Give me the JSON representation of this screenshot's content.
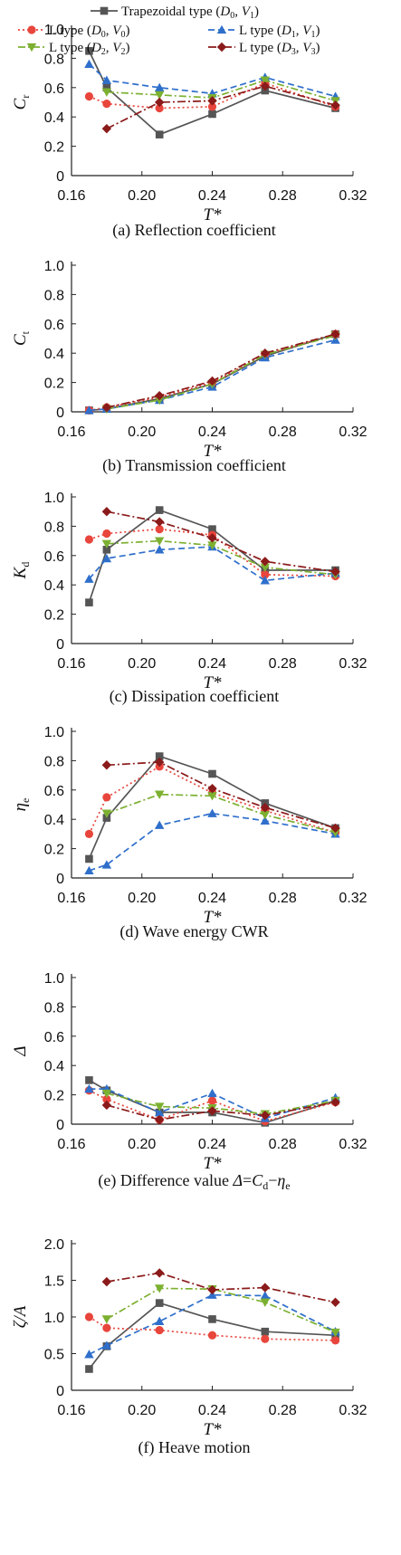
{
  "legend": [
    {
      "key": "trap",
      "name": "Trapezoidal type",
      "params": [
        [
          "D",
          "0"
        ],
        [
          "V",
          "1"
        ]
      ]
    },
    {
      "key": "l00",
      "name": "L type",
      "params": [
        [
          "D",
          "0"
        ],
        [
          "V",
          "0"
        ]
      ]
    },
    {
      "key": "l11",
      "name": "L type",
      "params": [
        [
          "D",
          "1"
        ],
        [
          "V",
          "1"
        ]
      ]
    },
    {
      "key": "l22",
      "name": "L type",
      "params": [
        [
          "D",
          "2"
        ],
        [
          "V",
          "2"
        ]
      ]
    },
    {
      "key": "l33",
      "name": "L type",
      "params": [
        [
          "D",
          "3"
        ],
        [
          "V",
          "3"
        ]
      ]
    }
  ],
  "styles": {
    "trap": {
      "color": "#555555",
      "dash": "",
      "marker": "square"
    },
    "l00": {
      "color": "#e8453c",
      "dash": "2,3",
      "marker": "circle"
    },
    "l11": {
      "color": "#2f6fcb",
      "dash": "7,4",
      "marker": "triangle-up"
    },
    "l22": {
      "color": "#7cb030",
      "dash": "8,3,2,3",
      "marker": "triangle-down"
    },
    "l33": {
      "color": "#8b1a1a",
      "dash": "9,3,2,3",
      "marker": "diamond"
    }
  },
  "chart_data": [
    {
      "type": "line",
      "caption": "(a) Reflection coefficient",
      "ylabel": {
        "main": "C",
        "sub": "r"
      },
      "xlabel": "T*",
      "xlim": [
        0.16,
        0.32
      ],
      "ylim": [
        0,
        1.0
      ],
      "xticks": [
        "0.16",
        "0.20",
        "0.24",
        "0.28",
        "0.32"
      ],
      "yticks": [
        "0",
        "0.2",
        "0.4",
        "0.6",
        "0.8",
        "1.0"
      ],
      "series": [
        {
          "key": "trap",
          "x": [
            0.17,
            0.18,
            0.21,
            0.24,
            0.27,
            0.31
          ],
          "y": [
            0.85,
            0.6,
            0.28,
            0.42,
            0.58,
            0.46
          ]
        },
        {
          "key": "l00",
          "x": [
            0.17,
            0.18,
            0.21,
            0.24,
            0.27,
            0.31
          ],
          "y": [
            0.54,
            0.49,
            0.46,
            0.47,
            0.63,
            0.47
          ]
        },
        {
          "key": "l11",
          "x": [
            0.17,
            0.18,
            0.21,
            0.24,
            0.27,
            0.31
          ],
          "y": [
            0.76,
            0.65,
            0.6,
            0.56,
            0.67,
            0.54
          ]
        },
        {
          "key": "l22",
          "x": [
            0.18,
            0.21,
            0.24,
            0.27,
            0.31
          ],
          "y": [
            0.57,
            0.55,
            0.53,
            0.65,
            0.51
          ]
        },
        {
          "key": "l33",
          "x": [
            0.18,
            0.21,
            0.24,
            0.27,
            0.31
          ],
          "y": [
            0.32,
            0.5,
            0.51,
            0.61,
            0.48
          ]
        }
      ]
    },
    {
      "type": "line",
      "caption": "(b) Transmission coefficient",
      "ylabel": {
        "main": "C",
        "sub": "t"
      },
      "xlabel": "T*",
      "xlim": [
        0.16,
        0.32
      ],
      "ylim": [
        0,
        1.0
      ],
      "xticks": [
        "0.16",
        "0.20",
        "0.24",
        "0.28",
        "0.32"
      ],
      "yticks": [
        "0",
        "0.2",
        "0.4",
        "0.6",
        "0.8",
        "1.0"
      ],
      "series": [
        {
          "key": "trap",
          "x": [
            0.17,
            0.18,
            0.21,
            0.24,
            0.27,
            0.31
          ],
          "y": [
            0.01,
            0.02,
            0.09,
            0.19,
            0.38,
            0.53
          ]
        },
        {
          "key": "l00",
          "x": [
            0.17,
            0.18,
            0.21,
            0.24,
            0.27,
            0.31
          ],
          "y": [
            0.01,
            0.03,
            0.1,
            0.2,
            0.39,
            0.53
          ]
        },
        {
          "key": "l11",
          "x": [
            0.17,
            0.18,
            0.21,
            0.24,
            0.27,
            0.31
          ],
          "y": [
            0.01,
            0.02,
            0.08,
            0.17,
            0.37,
            0.49
          ]
        },
        {
          "key": "l22",
          "x": [
            0.18,
            0.21,
            0.24,
            0.27,
            0.31
          ],
          "y": [
            0.02,
            0.08,
            0.19,
            0.39,
            0.52
          ]
        },
        {
          "key": "l33",
          "x": [
            0.18,
            0.21,
            0.24,
            0.27,
            0.31
          ],
          "y": [
            0.03,
            0.11,
            0.21,
            0.4,
            0.53
          ]
        }
      ]
    },
    {
      "type": "line",
      "caption": "(c) Dissipation coefficient",
      "ylabel": {
        "main": "K",
        "sub": "d"
      },
      "xlabel": "T*",
      "xlim": [
        0.16,
        0.32
      ],
      "ylim": [
        0,
        1.0
      ],
      "xticks": [
        "0.16",
        "0.20",
        "0.24",
        "0.28",
        "0.32"
      ],
      "yticks": [
        "0",
        "0.2",
        "0.4",
        "0.6",
        "0.8",
        "1.0"
      ],
      "series": [
        {
          "key": "trap",
          "x": [
            0.17,
            0.18,
            0.21,
            0.24,
            0.27,
            0.31
          ],
          "y": [
            0.28,
            0.64,
            0.91,
            0.78,
            0.5,
            0.5
          ]
        },
        {
          "key": "l00",
          "x": [
            0.17,
            0.18,
            0.21,
            0.24,
            0.27,
            0.31
          ],
          "y": [
            0.71,
            0.75,
            0.78,
            0.74,
            0.47,
            0.46
          ]
        },
        {
          "key": "l11",
          "x": [
            0.17,
            0.18,
            0.21,
            0.24,
            0.27,
            0.31
          ],
          "y": [
            0.44,
            0.58,
            0.64,
            0.66,
            0.43,
            0.48
          ]
        },
        {
          "key": "l22",
          "x": [
            0.18,
            0.21,
            0.24,
            0.27,
            0.31
          ],
          "y": [
            0.68,
            0.7,
            0.67,
            0.52,
            0.47
          ]
        },
        {
          "key": "l33",
          "x": [
            0.18,
            0.21,
            0.24,
            0.27,
            0.31
          ],
          "y": [
            0.9,
            0.83,
            0.72,
            0.56,
            0.49
          ]
        }
      ]
    },
    {
      "type": "line",
      "caption": "(d) Wave energy CWR",
      "ylabel": {
        "main": "η",
        "sub": "e"
      },
      "xlabel": "T*",
      "xlim": [
        0.16,
        0.32
      ],
      "ylim": [
        0,
        1.0
      ],
      "xticks": [
        "0.16",
        "0.20",
        "0.24",
        "0.28",
        "0.32"
      ],
      "yticks": [
        "0",
        "0.2",
        "0.4",
        "0.6",
        "0.8",
        "1.0"
      ],
      "series": [
        {
          "key": "trap",
          "x": [
            0.17,
            0.18,
            0.21,
            0.24,
            0.27,
            0.31
          ],
          "y": [
            0.13,
            0.41,
            0.83,
            0.71,
            0.51,
            0.34
          ]
        },
        {
          "key": "l00",
          "x": [
            0.17,
            0.18,
            0.21,
            0.24,
            0.27,
            0.31
          ],
          "y": [
            0.3,
            0.55,
            0.76,
            0.58,
            0.46,
            0.31
          ]
        },
        {
          "key": "l11",
          "x": [
            0.17,
            0.18,
            0.21,
            0.24,
            0.27,
            0.31
          ],
          "y": [
            0.05,
            0.09,
            0.36,
            0.44,
            0.39,
            0.3
          ]
        },
        {
          "key": "l22",
          "x": [
            0.18,
            0.21,
            0.24,
            0.27,
            0.31
          ],
          "y": [
            0.44,
            0.57,
            0.56,
            0.43,
            0.31
          ]
        },
        {
          "key": "l33",
          "x": [
            0.18,
            0.21,
            0.24,
            0.27,
            0.31
          ],
          "y": [
            0.77,
            0.79,
            0.61,
            0.48,
            0.34
          ]
        }
      ]
    },
    {
      "type": "line",
      "caption": "(e) Difference value Δ=Cd−ηe",
      "caption_parts": [
        {
          "t": "(e) Difference value ",
          "s": "normal"
        },
        {
          "t": "Δ",
          "s": "italic"
        },
        {
          "t": "=",
          "s": "normal"
        },
        {
          "t": "C",
          "s": "italic"
        },
        {
          "t": "d",
          "s": "sub"
        },
        {
          "t": "−",
          "s": "normal"
        },
        {
          "t": "η",
          "s": "italic"
        },
        {
          "t": "e",
          "s": "sub"
        }
      ],
      "ylabel": {
        "main": "Δ",
        "sub": ""
      },
      "xlabel": "T*",
      "xlim": [
        0.16,
        0.32
      ],
      "ylim": [
        0,
        1.0
      ],
      "xticks": [
        "0.16",
        "0.20",
        "0.24",
        "0.28",
        "0.32"
      ],
      "yticks": [
        "0",
        "0.2",
        "0.4",
        "0.6",
        "0.8",
        "1.0"
      ],
      "series": [
        {
          "key": "trap",
          "x": [
            0.17,
            0.18,
            0.21,
            0.24,
            0.27,
            0.31
          ],
          "y": [
            0.3,
            0.23,
            0.08,
            0.08,
            0.01,
            0.16
          ]
        },
        {
          "key": "l00",
          "x": [
            0.17,
            0.18,
            0.21,
            0.24,
            0.27,
            0.31
          ],
          "y": [
            0.23,
            0.17,
            0.03,
            0.16,
            0.02,
            0.15
          ]
        },
        {
          "key": "l11",
          "x": [
            0.17,
            0.18,
            0.21,
            0.24,
            0.27,
            0.31
          ],
          "y": [
            0.24,
            0.24,
            0.08,
            0.21,
            0.04,
            0.18
          ]
        },
        {
          "key": "l22",
          "x": [
            0.18,
            0.21,
            0.24,
            0.27,
            0.31
          ],
          "y": [
            0.21,
            0.12,
            0.11,
            0.07,
            0.16
          ]
        },
        {
          "key": "l33",
          "x": [
            0.18,
            0.21,
            0.24,
            0.27,
            0.31
          ],
          "y": [
            0.13,
            0.03,
            0.09,
            0.06,
            0.15
          ]
        }
      ]
    },
    {
      "type": "line",
      "caption": "(f) Heave motion",
      "ylabel": {
        "main": "ζ/A",
        "sub": ""
      },
      "xlabel": "T*",
      "xlim": [
        0.16,
        0.32
      ],
      "ylim": [
        0,
        2.0
      ],
      "xticks": [
        "0.16",
        "0.20",
        "0.24",
        "0.28",
        "0.32"
      ],
      "yticks": [
        "0",
        "0.5",
        "1.0",
        "1.5",
        "2.0"
      ],
      "series": [
        {
          "key": "trap",
          "x": [
            0.17,
            0.18,
            0.21,
            0.24,
            0.27,
            0.31
          ],
          "y": [
            0.29,
            0.6,
            1.19,
            0.97,
            0.8,
            0.75
          ]
        },
        {
          "key": "l00",
          "x": [
            0.17,
            0.18,
            0.21,
            0.24,
            0.27,
            0.31
          ],
          "y": [
            1.0,
            0.85,
            0.82,
            0.75,
            0.7,
            0.68
          ]
        },
        {
          "key": "l11",
          "x": [
            0.17,
            0.18,
            0.21,
            0.24,
            0.27,
            0.31
          ],
          "y": [
            0.49,
            0.61,
            0.94,
            1.3,
            1.29,
            0.8
          ]
        },
        {
          "key": "l22",
          "x": [
            0.18,
            0.21,
            0.24,
            0.27,
            0.31
          ],
          "y": [
            0.97,
            1.39,
            1.38,
            1.2,
            0.79
          ]
        },
        {
          "key": "l33",
          "x": [
            0.18,
            0.21,
            0.24,
            0.27,
            0.31
          ],
          "y": [
            1.48,
            1.6,
            1.37,
            1.4,
            1.2
          ]
        }
      ]
    }
  ]
}
